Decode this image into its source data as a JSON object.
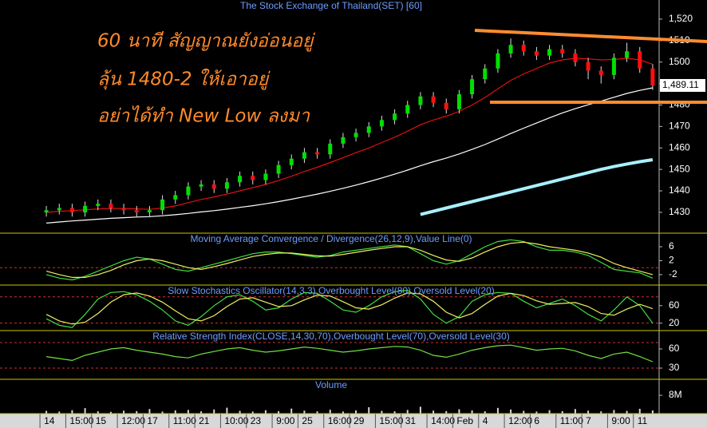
{
  "chart_data": [
    {
      "type": "candlestick",
      "title": "The Stock Exchange of Thailand(SET) [60]",
      "annotations": [
        "60 นาที สัญญาณยังอ่อนอยู่",
        "ลุ้น 1480-2 ให้เอาอยู่",
        "อย่าได้ทำ New Low ลงมา"
      ],
      "categories": [
        "14",
        null,
        "15:00",
        null,
        "15",
        null,
        "12:00",
        null,
        "17",
        null,
        "11:00",
        null,
        "21",
        null,
        "10:00",
        null,
        "23",
        null,
        "9:00",
        null,
        "25",
        null,
        "16:00",
        null,
        "29",
        null,
        "15:00",
        null,
        "31",
        null,
        "14:00",
        null,
        "Feb",
        null,
        "4",
        null,
        "12:00",
        null,
        "6",
        null,
        "11:00",
        null,
        "7",
        null,
        "9:00",
        null,
        "11",
        null
      ],
      "open": [
        1430,
        1431,
        1432,
        1430,
        1433,
        1434,
        1432,
        1431,
        1430,
        1431,
        1436,
        1438,
        1442,
        1443,
        1441,
        1444,
        1447,
        1445,
        1448,
        1452,
        1455,
        1458,
        1457,
        1462,
        1465,
        1467,
        1470,
        1473,
        1476,
        1480,
        1484,
        1481,
        1478,
        1485,
        1492,
        1497,
        1504,
        1508,
        1505,
        1503,
        1506,
        1504,
        1500,
        1496,
        1494,
        1502,
        1505,
        1497
      ],
      "high": [
        1433,
        1434,
        1434,
        1435,
        1436,
        1436,
        1434,
        1433,
        1433,
        1438,
        1440,
        1444,
        1445,
        1445,
        1446,
        1449,
        1449,
        1450,
        1454,
        1457,
        1460,
        1460,
        1464,
        1467,
        1469,
        1472,
        1475,
        1478,
        1482,
        1486,
        1486,
        1483,
        1487,
        1494,
        1499,
        1506,
        1511,
        1510,
        1507,
        1508,
        1508,
        1506,
        1502,
        1498,
        1504,
        1509,
        1507,
        1499
      ],
      "low": [
        1428,
        1429,
        1428,
        1428,
        1431,
        1430,
        1429,
        1428,
        1428,
        1429,
        1434,
        1436,
        1440,
        1439,
        1439,
        1442,
        1443,
        1443,
        1446,
        1450,
        1453,
        1455,
        1455,
        1460,
        1463,
        1465,
        1468,
        1471,
        1474,
        1478,
        1479,
        1476,
        1476,
        1483,
        1490,
        1495,
        1502,
        1503,
        1501,
        1501,
        1502,
        1498,
        1492,
        1490,
        1492,
        1500,
        1495,
        1487
      ],
      "close": [
        1431,
        1432,
        1430,
        1433,
        1434,
        1432,
        1431,
        1430,
        1431,
        1436,
        1438,
        1442,
        1443,
        1441,
        1444,
        1447,
        1445,
        1448,
        1452,
        1455,
        1458,
        1457,
        1462,
        1465,
        1467,
        1470,
        1473,
        1476,
        1480,
        1484,
        1481,
        1478,
        1485,
        1492,
        1497,
        1504,
        1508,
        1505,
        1503,
        1506,
        1504,
        1500,
        1496,
        1494,
        1502,
        1505,
        1497,
        1489.11
      ],
      "up_color": "#00e000",
      "down_color": "#ff1010",
      "series": [
        {
          "color": "#ffffff",
          "values": [
            1425,
            1425.5,
            1426,
            1426.4,
            1426.8,
            1427.2,
            1427.5,
            1427.8,
            1428,
            1428.4,
            1428.9,
            1429.5,
            1430.2,
            1430.8,
            1431.5,
            1432.3,
            1433.1,
            1434,
            1435,
            1436.1,
            1437.3,
            1438.5,
            1439.8,
            1441.2,
            1442.7,
            1444.3,
            1446,
            1447.8,
            1449.7,
            1451.7,
            1453.6,
            1455.3,
            1457.2,
            1459.3,
            1461.6,
            1464.1,
            1466.7,
            1469.2,
            1471.6,
            1474,
            1476.3,
            1478.3,
            1480.1,
            1481.8,
            1483.6,
            1485.4,
            1486.8,
            1488
          ]
        },
        {
          "color": "#e01010",
          "values": [
            1430,
            1430.5,
            1430.8,
            1431.2,
            1431.6,
            1431.8,
            1431.8,
            1431.6,
            1431.4,
            1432,
            1433,
            1434.5,
            1436,
            1437.2,
            1438.5,
            1440,
            1441.5,
            1443,
            1444.8,
            1446.8,
            1449,
            1451,
            1453.2,
            1455.5,
            1457.8,
            1460,
            1462.5,
            1465,
            1467.8,
            1470.8,
            1473,
            1474.8,
            1477,
            1480,
            1483.5,
            1487.5,
            1491.5,
            1494.5,
            1497,
            1499.5,
            1501,
            1501.8,
            1501.5,
            1501,
            1501.2,
            1501.8,
            1501,
            1499
          ]
        },
        {
          "color": "#a8f0ff",
          "width": 4,
          "values": [
            null,
            null,
            null,
            null,
            null,
            null,
            null,
            null,
            null,
            null,
            null,
            null,
            null,
            null,
            null,
            null,
            null,
            null,
            null,
            null,
            null,
            null,
            null,
            null,
            null,
            null,
            null,
            null,
            null,
            1429,
            1430.5,
            1432,
            1433.5,
            1435,
            1436.5,
            1438,
            1439.5,
            1441,
            1442.5,
            1444,
            1445.5,
            1447,
            1448.5,
            1450,
            1451.3,
            1452.5,
            1453.6,
            1454.5
          ]
        }
      ],
      "last_value": {
        "value": 1489.11,
        "label": "1,489.11"
      },
      "ylim": [
        1420.3,
        1528.9
      ],
      "yticks": [
        1430,
        1440,
        1450,
        1460,
        1470,
        1480,
        1490,
        1500,
        1510,
        {
          "value": 1520,
          "label": "1,520"
        }
      ]
    },
    {
      "type": "line",
      "title": "Moving Average Convergence / Divergence(26,12,9),Value Line(0)",
      "series": [
        {
          "color": "#40e040",
          "values": [
            -2,
            -3,
            -3.5,
            -2.5,
            -1,
            0.5,
            2,
            3,
            2.5,
            1,
            -0.5,
            -1,
            0,
            1,
            2,
            3,
            4,
            4.5,
            4.5,
            4,
            3.5,
            3,
            3.5,
            4.5,
            5,
            5.5,
            6,
            6.5,
            6,
            4,
            2,
            1,
            2,
            4,
            6,
            7.5,
            8,
            7.5,
            6,
            5,
            5,
            4.5,
            3.5,
            1.5,
            -0.5,
            -1,
            -1.5,
            -3
          ]
        },
        {
          "color": "#f0f060",
          "values": [
            -1,
            -2,
            -2.8,
            -2.8,
            -2,
            -0.8,
            0.8,
            2,
            2.5,
            2,
            1,
            0,
            -0.5,
            0.3,
            1.2,
            2.2,
            3.2,
            3.8,
            4.2,
            4.2,
            3.8,
            3.4,
            3.3,
            3.8,
            4.4,
            5,
            5.5,
            6,
            6,
            5,
            3.5,
            2.2,
            1.8,
            2.8,
            4.5,
            6,
            7,
            7.3,
            6.8,
            6,
            5.5,
            5,
            4.2,
            3,
            1.2,
            0,
            -1,
            -2
          ]
        }
      ],
      "levels": [
        0
      ],
      "ylim": [
        -5,
        9.9
      ],
      "yticks": [
        6,
        2,
        -2
      ]
    },
    {
      "type": "line",
      "title": "Slow Stochastics Oscillator(14,3,3),Overbought Level(80),Oversold Level(20)",
      "series": [
        {
          "color": "#40e040",
          "values": [
            30,
            15,
            10,
            40,
            75,
            90,
            92,
            85,
            70,
            50,
            25,
            15,
            35,
            60,
            80,
            85,
            70,
            50,
            55,
            75,
            90,
            88,
            70,
            50,
            45,
            60,
            80,
            92,
            95,
            75,
            40,
            20,
            35,
            70,
            85,
            90,
            88,
            70,
            55,
            65,
            75,
            60,
            40,
            25,
            50,
            80,
            60,
            20
          ]
        },
        {
          "color": "#f0f060",
          "values": [
            40,
            25,
            18,
            22,
            42,
            68,
            85,
            89,
            82,
            68,
            48,
            30,
            25,
            37,
            58,
            75,
            78,
            68,
            58,
            60,
            73,
            84,
            82,
            69,
            55,
            52,
            62,
            77,
            89,
            87,
            70,
            45,
            32,
            42,
            63,
            82,
            88,
            83,
            71,
            63,
            65,
            67,
            58,
            42,
            38,
            52,
            63,
            53
          ]
        }
      ],
      "levels": [
        80,
        20
      ],
      "ylim": [
        3,
        107
      ],
      "yticks": [
        60,
        20
      ]
    },
    {
      "type": "line",
      "title": "Relative Strength Index(CLOSE,14,30,70),Overbought Level(70),Oversold Level(30)",
      "series": [
        {
          "color": "#70e040",
          "values": [
            48,
            45,
            42,
            50,
            55,
            60,
            62,
            58,
            55,
            52,
            48,
            46,
            52,
            56,
            60,
            62,
            58,
            55,
            57,
            60,
            63,
            61,
            58,
            55,
            57,
            60,
            62,
            64,
            63,
            58,
            50,
            47,
            52,
            58,
            62,
            65,
            66,
            62,
            58,
            60,
            61,
            57,
            50,
            45,
            52,
            55,
            48,
            40
          ]
        }
      ],
      "levels": [
        70,
        30
      ],
      "ylim": [
        12.5,
        88.75
      ],
      "yticks": [
        60,
        30
      ]
    },
    {
      "type": "bar",
      "title": "Volume",
      "color": "#d8d8d8",
      "values": [
        1200000,
        900000,
        1500000,
        2400000,
        1000000,
        800000,
        1300000,
        1100000,
        2000000,
        900000,
        1400000,
        1600000,
        1000000,
        1800000,
        2600000,
        1200000,
        900000,
        1500000,
        1100000,
        2200000,
        1300000,
        1000000,
        1700000,
        900000,
        1400000,
        2800000,
        1200000,
        1000000,
        1600000,
        3000000,
        1300000,
        1100000,
        1900000,
        1400000,
        1000000,
        2500000,
        1800000,
        1200000,
        900000,
        1500000,
        1100000,
        2000000,
        1300000,
        1000000,
        1600000,
        1200000,
        2100000,
        1400000
      ],
      "ylim": [
        0,
        15000000
      ],
      "yticks": [
        {
          "value": 8000000,
          "label": "8M"
        }
      ]
    }
  ]
}
